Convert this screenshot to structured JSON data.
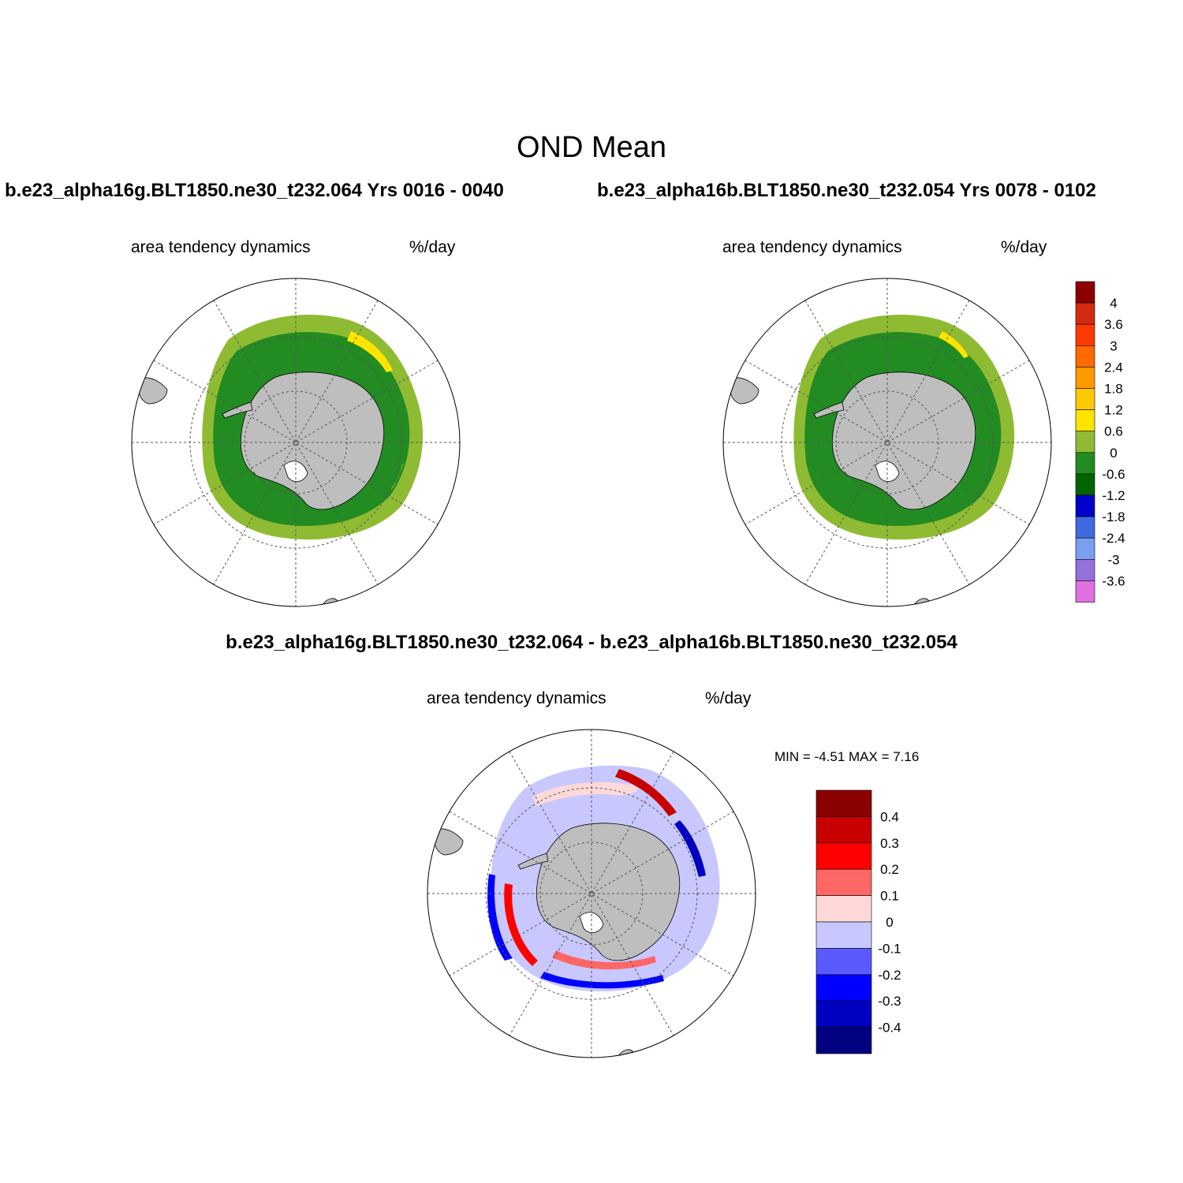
{
  "title": "OND Mean",
  "panels": {
    "case_a": {
      "title": "b.e23_alpha16g.BLT1850.ne30_t232.064  Yrs 0016 - 0040",
      "left_label": "area tendency dynamics",
      "right_label": "%/day"
    },
    "case_b": {
      "title": "b.e23_alpha16b.BLT1850.ne30_t232.054  Yrs 0078 - 0102",
      "left_label": "area tendency dynamics",
      "right_label": "%/day"
    },
    "diff": {
      "title": "b.e23_alpha16g.BLT1850.ne30_t232.064 - b.e23_alpha16b.BLT1850.ne30_t232.054",
      "left_label": "area tendency dynamics",
      "right_label": "%/day",
      "minmax": "MIN =  -4.51 MAX =   7.16"
    }
  },
  "colorbar_main": {
    "levels": [
      "4",
      "3.6",
      "3",
      "2.4",
      "1.8",
      "1.2",
      "0.6",
      "0",
      "-0.6",
      "-1.2",
      "-1.8",
      "-2.4",
      "-3",
      "-3.6"
    ],
    "colors": [
      "#8b0000",
      "#d42a10",
      "#ff3a00",
      "#ff6a00",
      "#ff9a00",
      "#ffc800",
      "#ffe400",
      "#8fbb33",
      "#228b22",
      "#006400",
      "#0000c8",
      "#4169e1",
      "#7b9ff0",
      "#9370db",
      "#e070e0"
    ]
  },
  "colorbar_diff": {
    "levels": [
      "0.4",
      "0.3",
      "0.2",
      "0.1",
      "0",
      "-0.1",
      "-0.2",
      "-0.3",
      "-0.4"
    ],
    "colors": [
      "#8b0000",
      "#c80000",
      "#ff0000",
      "#ff6666",
      "#ffd9d9",
      "#c8c8ff",
      "#5a5aff",
      "#0000ff",
      "#0000c0",
      "#000080"
    ]
  },
  "map_colors": {
    "land": "#bebebe",
    "outer_band": "#8fbb33",
    "inner_band": "#228b22",
    "positive_streak": "#ffe400"
  }
}
